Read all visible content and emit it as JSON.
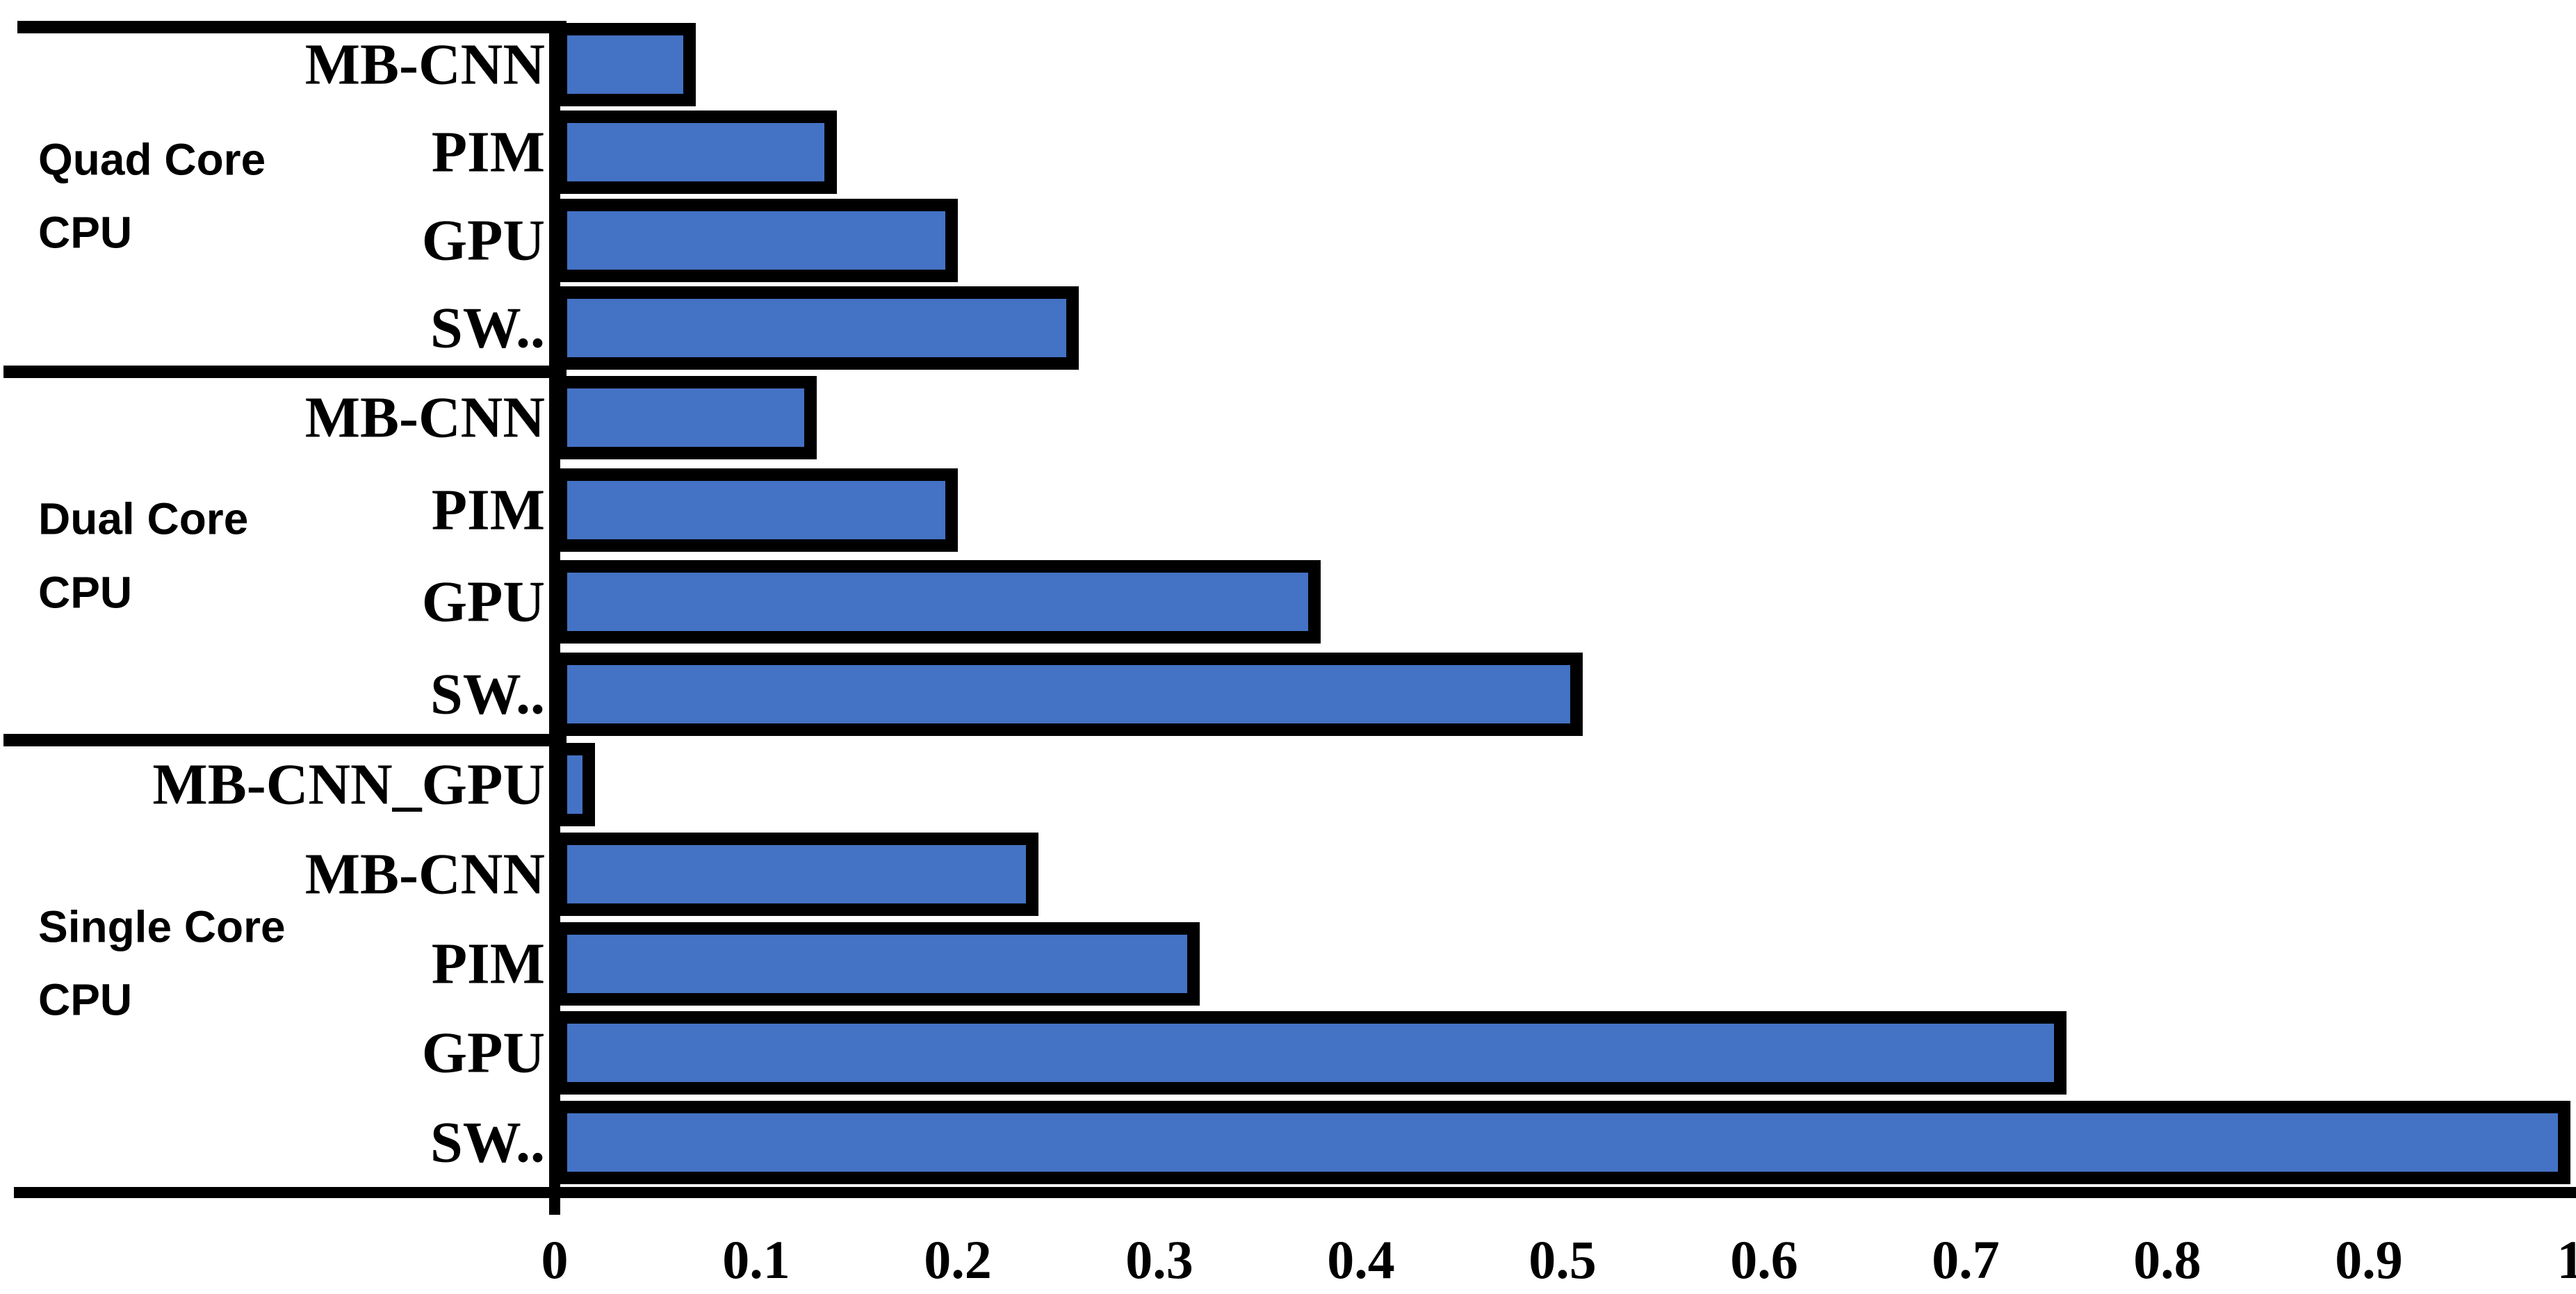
{
  "chart_data": {
    "type": "bar",
    "orientation": "horizontal",
    "title": "",
    "xlabel": "",
    "ylabel": "",
    "xlim": [
      0,
      1
    ],
    "grid": false,
    "legend": false,
    "x_ticks": [
      "0",
      "0.1",
      "0.2",
      "0.3",
      "0.4",
      "0.5",
      "0.6",
      "0.7",
      "0.8",
      "0.9",
      "1"
    ],
    "bar_color": "#4472C4",
    "bar_border_color": "#000000",
    "axis_color": "#000000",
    "groups": [
      {
        "label": "Quad Core CPU",
        "label_lines": [
          "Quad Core",
          "CPU"
        ],
        "bars": [
          {
            "name": "MB-CNN",
            "value": 0.07
          },
          {
            "name": "PIM",
            "value": 0.14
          },
          {
            "name": "GPU",
            "value": 0.2
          },
          {
            "name": "SW..",
            "value": 0.26
          }
        ]
      },
      {
        "label": "Dual Core CPU",
        "label_lines": [
          "Dual Core",
          "CPU"
        ],
        "bars": [
          {
            "name": "MB-CNN",
            "value": 0.13
          },
          {
            "name": "PIM",
            "value": 0.2
          },
          {
            "name": "GPU",
            "value": 0.38
          },
          {
            "name": "SW..",
            "value": 0.51
          }
        ]
      },
      {
        "label": "Single Core CPU",
        "label_lines": [
          "Single Core",
          "CPU"
        ],
        "bars": [
          {
            "name": "MB-CNN_GPU",
            "value": 0.02
          },
          {
            "name": "MB-CNN",
            "value": 0.24
          },
          {
            "name": "PIM",
            "value": 0.32
          },
          {
            "name": "GPU",
            "value": 0.75
          },
          {
            "name": "SW..",
            "value": 1.0
          }
        ]
      }
    ]
  }
}
